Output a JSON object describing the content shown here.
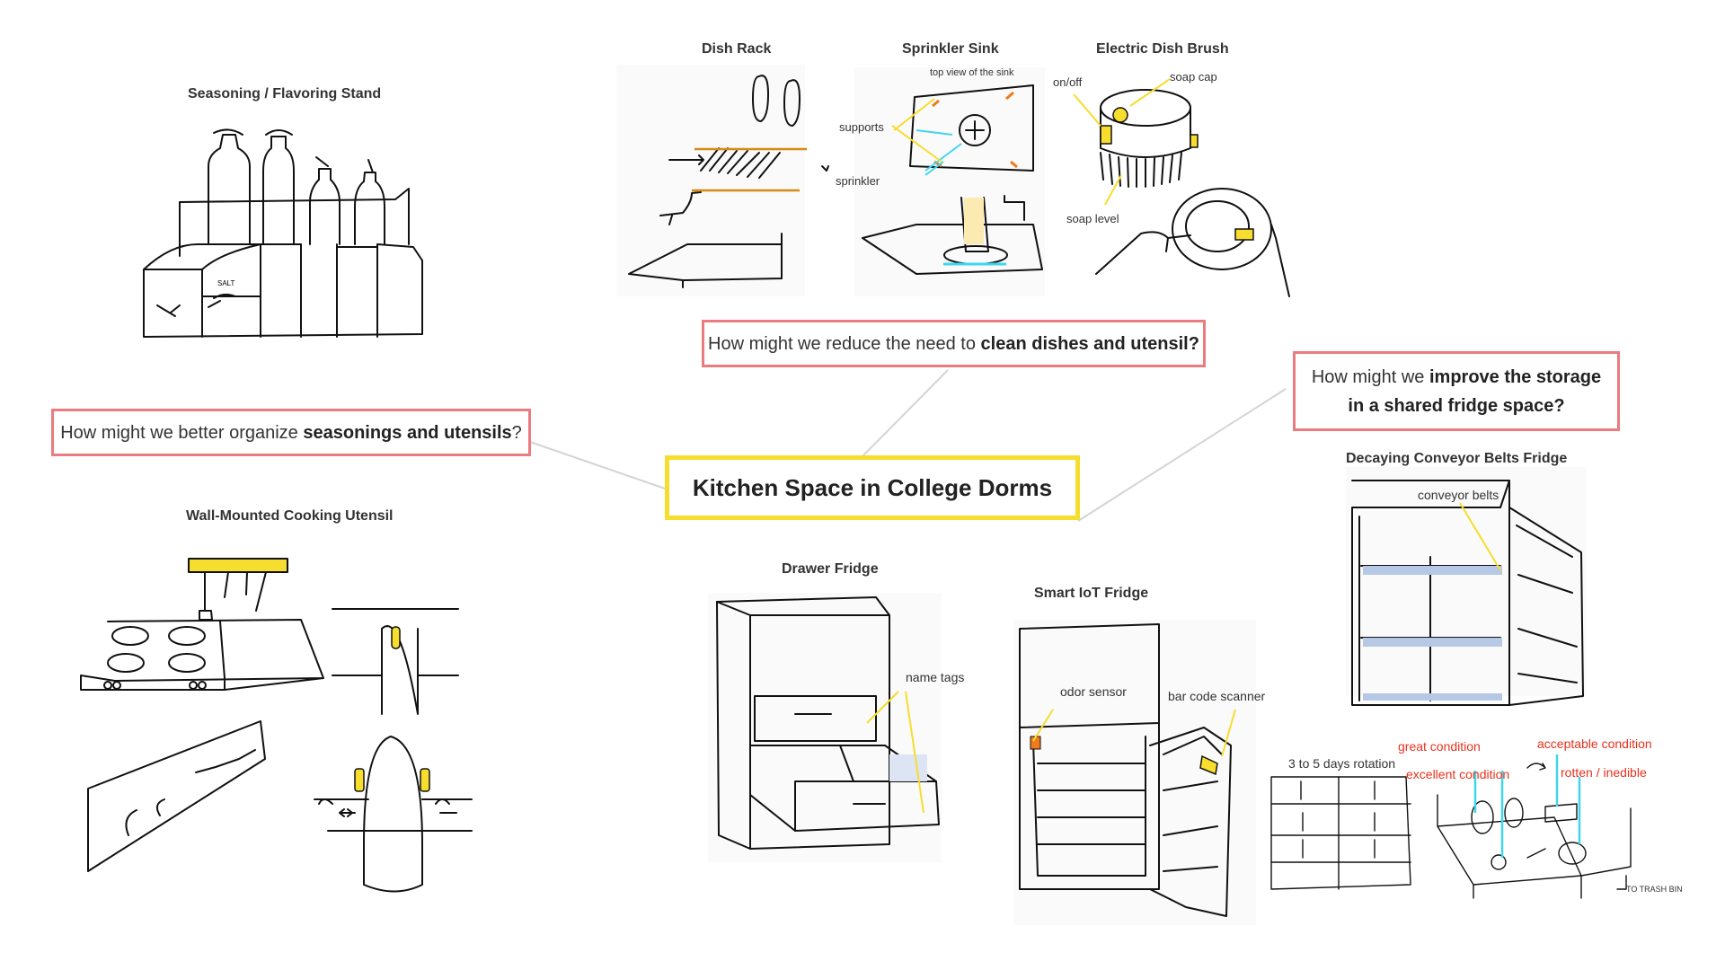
{
  "center": {
    "title": "Kitchen Space in College Dorms"
  },
  "questions": {
    "seasonings": {
      "prefix": "How might we better organize ",
      "bold": "seasonings and utensils",
      "suffix": "?"
    },
    "dishes": {
      "prefix": "How might we reduce the need to ",
      "bold": "clean dishes and utensil?"
    },
    "fridge": {
      "prefix": "How might we ",
      "bold1": "improve the storage",
      "bold2": "in a shared fridge space?"
    }
  },
  "sketches": {
    "seasoning_stand": {
      "title": "Seasoning / Flavoring Stand",
      "jar_label": "SALT"
    },
    "wall_utensil": {
      "title": "Wall-Mounted Cooking Utensil"
    },
    "dish_rack": {
      "title": "Dish Rack"
    },
    "sprinkler_sink": {
      "title": "Sprinkler Sink",
      "top_view": "top view of the sink",
      "supports": "supports",
      "sprinkler": "sprinkler"
    },
    "dish_brush": {
      "title": "Electric Dish Brush",
      "on_off": "on/off",
      "soap_cap": "soap cap",
      "soap_level": "soap level"
    },
    "drawer_fridge": {
      "title": "Drawer Fridge",
      "name_tags": "name tags"
    },
    "smart_fridge": {
      "title": "Smart IoT Fridge",
      "odor_sensor": "odor sensor",
      "bar_code": "bar code scanner"
    },
    "conveyor_fridge": {
      "title": "Decaying Conveyor Belts Fridge",
      "conveyor_belts": "conveyor belts",
      "rotation": "3 to 5 days rotation",
      "great": "great condition",
      "excellent": "excellent condition",
      "acceptable": "acceptable condition",
      "rotten": "rotten / inedible",
      "trash": "TO TRASH BIN"
    }
  },
  "colors": {
    "yellow": "#f7dd2d",
    "pink": "#ea7b7f",
    "cyan": "#3fd6ee",
    "red": "#e8301c",
    "orange": "#f07a1a"
  }
}
